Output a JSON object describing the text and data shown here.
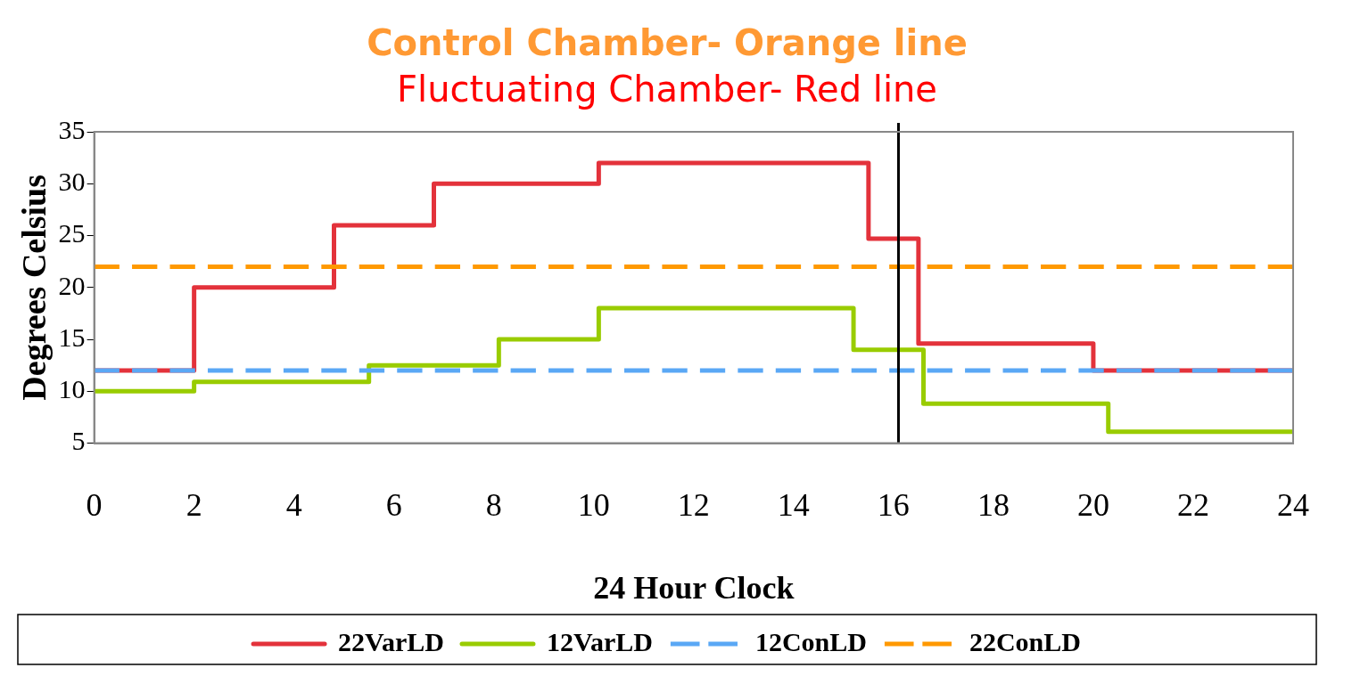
{
  "chart_data": {
    "type": "step",
    "title": "Control Chamber- Orange line",
    "subtitle": "Fluctuating Chamber- Red line",
    "xlabel": "24 Hour Clock",
    "ylabel": "Degrees Celsius",
    "xlim": [
      0,
      24
    ],
    "xticks": [
      0,
      2,
      4,
      6,
      8,
      10,
      12,
      14,
      16,
      18,
      20,
      22,
      24
    ],
    "ylim": [
      5,
      35
    ],
    "yticks": [
      5,
      10,
      15,
      20,
      25,
      30,
      35
    ],
    "grid": false,
    "legend": "bottom",
    "series": [
      {
        "name": "22VarLD",
        "color": "#e3323b",
        "line_style": "solid",
        "x": [
          0,
          2,
          4.8,
          6.8,
          10.1,
          15.5,
          16.5,
          20,
          24
        ],
        "values": [
          12,
          20,
          26,
          30,
          32,
          24.7,
          14.6,
          12,
          12
        ]
      },
      {
        "name": "12VarLD",
        "color": "#99cc00",
        "line_style": "solid",
        "x": [
          0,
          2,
          5.5,
          8.1,
          10.1,
          15.2,
          16.6,
          20.3,
          24
        ],
        "values": [
          10,
          10.9,
          12.5,
          15,
          18,
          14,
          8.8,
          6.1,
          6.1
        ]
      },
      {
        "name": "12ConLD",
        "color": "#5aa8f5",
        "line_style": "dashed",
        "x": [
          0,
          24
        ],
        "values": [
          12,
          12
        ]
      },
      {
        "name": "22ConLD",
        "color": "#ff9900",
        "line_style": "dashed",
        "x": [
          0,
          24
        ],
        "values": [
          22,
          22
        ]
      }
    ],
    "ref_lines": [
      {
        "axis": "x",
        "value": 16.1,
        "color": "#000000"
      }
    ]
  }
}
